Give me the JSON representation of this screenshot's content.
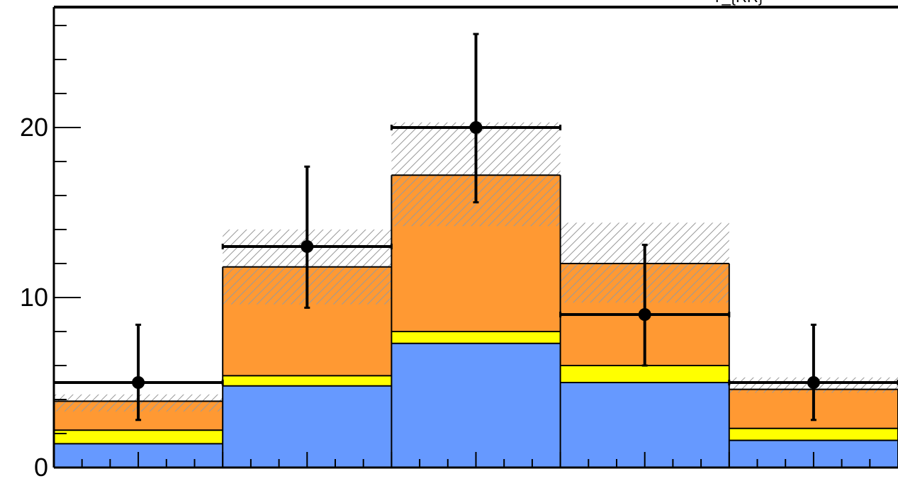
{
  "chart_data": {
    "type": "bar",
    "style": "stacked-histogram",
    "top_label_partial": "T_{RR}",
    "xlabel": "",
    "ylabel": "",
    "ylim": [
      0,
      27
    ],
    "y_ticks": [
      0,
      10,
      20
    ],
    "y_tick_labels": [
      "0",
      "10",
      "20"
    ],
    "y_minor_step": 2,
    "x_bins": 5,
    "x_minor_ticks_per_bin": 6,
    "stack": [
      {
        "color": "#6699ff",
        "values": [
          1.4,
          4.8,
          7.3,
          5.0,
          1.6
        ]
      },
      {
        "color": "#ffff00",
        "values": [
          0.8,
          0.6,
          0.7,
          1.0,
          0.7
        ]
      },
      {
        "color": "#ff9933",
        "values": [
          1.7,
          6.4,
          9.2,
          6.0,
          2.3
        ]
      }
    ],
    "stack_total": [
      3.9,
      11.8,
      17.2,
      12.0,
      4.6
    ],
    "uncertainty_band": {
      "style": "hatched",
      "low": [
        3.3,
        9.6,
        14.2,
        9.7,
        4.4
      ],
      "high": [
        4.3,
        14.0,
        20.3,
        14.4,
        5.3
      ]
    },
    "data_points": {
      "marker": "filled-circle",
      "color": "#000000",
      "values": [
        5,
        13,
        20,
        9,
        5
      ],
      "err_low": [
        2.2,
        3.6,
        4.4,
        3.0,
        2.2
      ],
      "err_high": [
        3.4,
        4.7,
        5.5,
        4.1,
        3.4
      ]
    },
    "legend": "none"
  }
}
